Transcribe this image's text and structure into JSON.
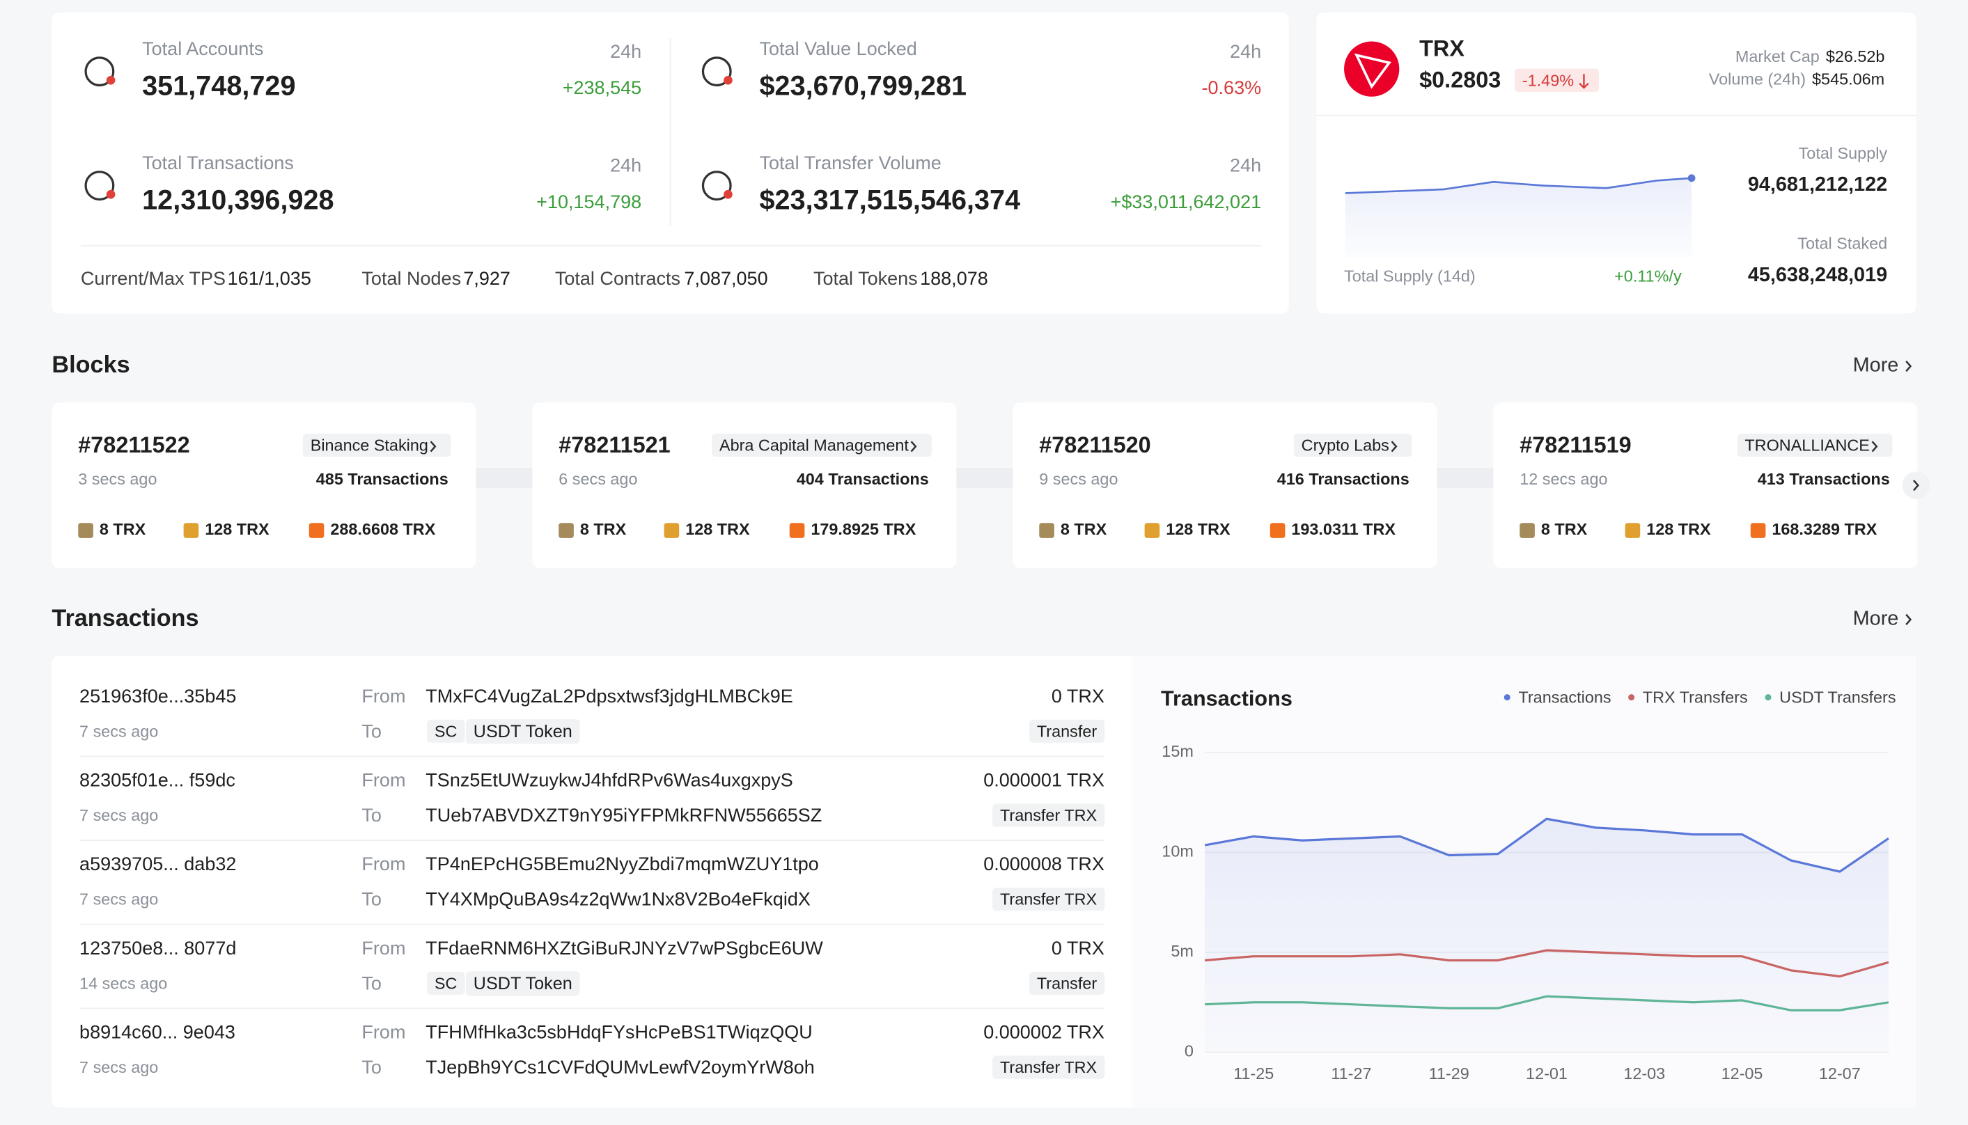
{
  "overview": {
    "stats": [
      {
        "label": "Total Accounts",
        "value": "351,748,729",
        "period": "24h",
        "change": "+238,545"
      },
      {
        "label": "Total Value Locked",
        "value": "$23,670,799,281",
        "period": "24h",
        "change": "-0.63%"
      },
      {
        "label": "Total Transactions",
        "value": "12,310,396,928",
        "period": "24h",
        "change": "+10,154,798"
      },
      {
        "label": "Total Transfer Volume",
        "value": "$23,317,515,546,374",
        "period": "24h",
        "change": "+$33,011,642,021"
      }
    ],
    "footer": [
      {
        "label": "Current/Max TPS",
        "value": "161/1,035"
      },
      {
        "label": "Total Nodes",
        "value": "7,927"
      },
      {
        "label": "Total Contracts",
        "value": "7,087,050"
      },
      {
        "label": "Total Tokens",
        "value": "188,078"
      }
    ]
  },
  "trx": {
    "name": "TRX",
    "price": "$0.2803",
    "change": "-1.49%",
    "market_cap_label": "Market Cap",
    "market_cap": "$26.52b",
    "volume_label": "Volume (24h)",
    "volume": "$545.06m",
    "supply_chart_label": "Total Supply (14d)",
    "supply_rate": "+0.11%/y",
    "total_supply_label": "Total Supply",
    "total_supply": "94,681,212,122",
    "total_staked_label": "Total Staked",
    "total_staked": "45,638,248,019"
  },
  "blocks": {
    "title": "Blocks",
    "more": "More",
    "items": [
      {
        "number": "#78211522",
        "producer": "Binance Staking",
        "age": "3 secs ago",
        "transactions": "485 Transactions",
        "reward": "8 TRX",
        "vote_reward": "128 TRX",
        "burn": "288.6608 TRX"
      },
      {
        "number": "#78211521",
        "producer": "Abra Capital Management",
        "age": "6 secs ago",
        "transactions": "404 Transactions",
        "reward": "8 TRX",
        "vote_reward": "128 TRX",
        "burn": "179.8925 TRX"
      },
      {
        "number": "#78211520",
        "producer": "Crypto Labs",
        "age": "9 secs ago",
        "transactions": "416 Transactions",
        "reward": "8 TRX",
        "vote_reward": "128 TRX",
        "burn": "193.0311 TRX"
      },
      {
        "number": "#78211519",
        "producer": "TRONALLIANCE",
        "age": "12 secs ago",
        "transactions": "413 Transactions",
        "reward": "8 TRX",
        "vote_reward": "128 TRX",
        "burn": "168.3289 TRX"
      }
    ]
  },
  "transactions": {
    "title": "Transactions",
    "more": "More",
    "from_label": "From",
    "to_label": "To",
    "items": [
      {
        "hash": "251963f0e...35b45",
        "age": "7 secs ago",
        "from": "TMxFC4VugZaL2Pdpsxtwsf3jdgHLMBCk9E",
        "to_tag": "SC",
        "to": "USDT Token",
        "amount": "0 TRX",
        "type": "Transfer"
      },
      {
        "hash": "82305f01e... f59dc",
        "age": "7 secs ago",
        "from": "TSnz5EtUWzuykwJ4hfdRPv6Was4uxgxpyS",
        "to": "TUeb7ABVDXZT9nY95iYFPMkRFNW55665SZ",
        "amount": "0.000001 TRX",
        "type": "Transfer TRX"
      },
      {
        "hash": "a5939705... dab32",
        "age": "7 secs ago",
        "from": "TP4nEPcHG5BEmu2NyyZbdi7mqmWZUY1tpo",
        "to": "TY4XMpQuBA9s4z2qWw1Nx8V2Bo4eFkqidX",
        "amount": "0.000008 TRX",
        "type": "Transfer TRX"
      },
      {
        "hash": "123750e8... 8077d",
        "age": "14 secs ago",
        "from": "TFdaeRNM6HXZtGiBuRJNYzV7wPSgbcE6UW",
        "to_tag": "SC",
        "to": "USDT Token",
        "amount": "0 TRX",
        "type": "Transfer"
      },
      {
        "hash": "b8914c60... 9e043",
        "age": "7 secs ago",
        "from": "TFHMfHka3c5sbHdqFYsHcPeBS1TWiqzQQU",
        "to": "TJepBh9YCs1CVFdQUMvLewfV2oymYrW8oh",
        "amount": "0.000002 TRX",
        "type": "Transfer TRX"
      }
    ]
  },
  "chart_data": {
    "type": "line",
    "title": "Transactions",
    "categories": [
      null,
      "11-25",
      null,
      "11-27",
      null,
      "11-29",
      null,
      "12-01",
      null,
      "12-03",
      null,
      "12-05",
      null,
      "12-07",
      null
    ],
    "series": [
      {
        "name": "Transactions",
        "color": "#5b78d8",
        "values": [
          10.36,
          10.8,
          10.6,
          10.7,
          10.8,
          9.86,
          9.92,
          11.68,
          11.24,
          11.1,
          10.9,
          10.9,
          9.6,
          9.04,
          10.7
        ]
      },
      {
        "name": "TRX Transfers",
        "color": "#c96464",
        "values": [
          4.6,
          4.8,
          4.8,
          4.8,
          4.9,
          4.6,
          4.6,
          5.1,
          5.0,
          4.9,
          4.8,
          4.8,
          4.1,
          3.8,
          4.5
        ]
      },
      {
        "name": "USDT Transfers",
        "color": "#5fb596",
        "values": [
          2.4,
          2.5,
          2.5,
          2.4,
          2.3,
          2.2,
          2.2,
          2.8,
          2.7,
          2.6,
          2.5,
          2.6,
          2.1,
          2.1,
          2.5
        ]
      }
    ],
    "ylim": [
      0,
      15
    ],
    "yticks": [
      0,
      {
        "value": 5,
        "label": "5m"
      },
      {
        "value": 10,
        "label": "10m"
      },
      {
        "value": 15,
        "label": "15m"
      }
    ],
    "grid": true
  }
}
